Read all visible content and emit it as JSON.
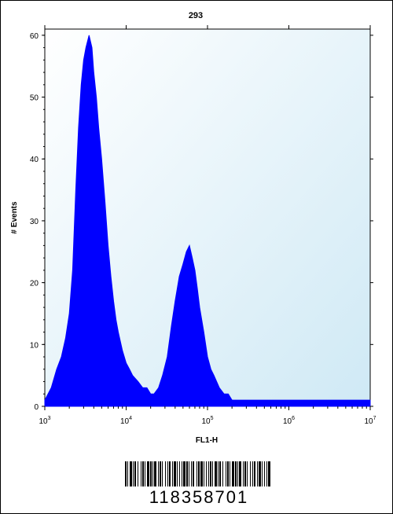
{
  "chart_data": {
    "type": "area",
    "title": "293",
    "xlabel": "FL1-H",
    "ylabel": "# Events",
    "x_scale": "log",
    "xlim": [
      1000,
      10000000
    ],
    "ylim": [
      0,
      61
    ],
    "y_ticks": [
      "0",
      "10",
      "20",
      "30",
      "40",
      "50",
      "60"
    ],
    "x_ticks": [
      {
        "base": "10",
        "exp": "3"
      },
      {
        "base": "10",
        "exp": "4"
      },
      {
        "base": "10",
        "exp": "5"
      },
      {
        "base": "10",
        "exp": "6"
      },
      {
        "base": "10",
        "exp": "7"
      }
    ],
    "colors": {
      "fill": "#0000ff",
      "plot_bg_top": "#ffffff",
      "plot_bg_bottom": "#cfe9f5"
    },
    "series": [
      {
        "x": [
          1000,
          1200,
          1400,
          1600,
          1800,
          2000,
          2200,
          2400,
          2600,
          2800,
          3000,
          3200,
          3500,
          3800,
          4000,
          4300,
          4600,
          5000,
          5500,
          6000,
          6500,
          7000,
          7500,
          8000,
          9000,
          10000,
          11000,
          12000,
          14000,
          16000,
          18000,
          20000,
          22000,
          25000,
          28000,
          32000,
          36000,
          40000,
          45000,
          50000,
          55000,
          60000,
          65000,
          70000,
          75000,
          80000,
          90000,
          100000,
          110000,
          120000,
          140000,
          160000,
          180000,
          200000,
          250000,
          300000,
          400000,
          600000,
          1000000,
          2000000,
          4000000,
          10000000
        ],
        "y": [
          1,
          3,
          6,
          8,
          11,
          15,
          22,
          35,
          45,
          52,
          56,
          58,
          60,
          58,
          54,
          50,
          45,
          40,
          33,
          26,
          21,
          17,
          14,
          12,
          9,
          7,
          6,
          5,
          4,
          3,
          3,
          2,
          2,
          3,
          5,
          8,
          13,
          17,
          21,
          23,
          25,
          26,
          24,
          22,
          19,
          16,
          12,
          8,
          6,
          5,
          3,
          2,
          2,
          1,
          1,
          1,
          1,
          1,
          1,
          1,
          1,
          1
        ]
      }
    ]
  },
  "footer": {
    "barcode_number": "118358701"
  }
}
